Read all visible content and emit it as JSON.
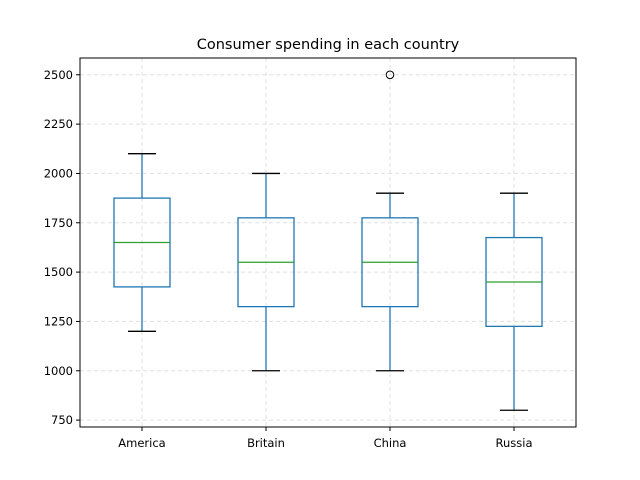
{
  "chart_data": {
    "type": "boxplot",
    "title": "Consumer spending in each country",
    "xlabel": "",
    "ylabel": "",
    "categories": [
      "America",
      "Britain",
      "China",
      "Russia"
    ],
    "boxes": [
      {
        "name": "America",
        "whisker_low": 1200,
        "q1": 1425,
        "median": 1650,
        "q3": 1875,
        "whisker_high": 2100,
        "outliers": []
      },
      {
        "name": "Britain",
        "whisker_low": 1000,
        "q1": 1325,
        "median": 1550,
        "q3": 1775,
        "whisker_high": 2000,
        "outliers": []
      },
      {
        "name": "China",
        "whisker_low": 1000,
        "q1": 1325,
        "median": 1550,
        "q3": 1775,
        "whisker_high": 1900,
        "outliers": [
          2500
        ]
      },
      {
        "name": "Russia",
        "whisker_low": 800,
        "q1": 1225,
        "median": 1450,
        "q3": 1675,
        "whisker_high": 1900,
        "outliers": []
      }
    ],
    "yticks": [
      750,
      1000,
      1250,
      1500,
      1750,
      2000,
      2250,
      2500
    ],
    "ytick_labels": [
      "750",
      "1000",
      "1250",
      "1500",
      "1750",
      "2000",
      "2250",
      "2500"
    ],
    "ylim": [
      715,
      2585
    ],
    "grid": true,
    "colors": {
      "box": "#1f77b4",
      "median": "#2ca02c",
      "cap": "#000000",
      "grid": "#e0e0e0"
    }
  }
}
